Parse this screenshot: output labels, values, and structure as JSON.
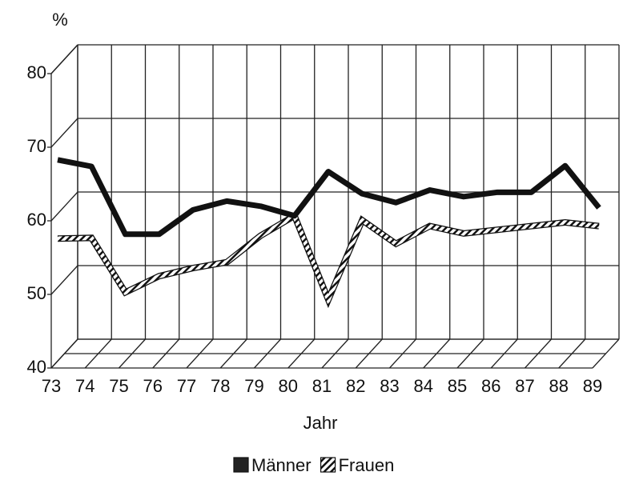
{
  "chart_data": {
    "type": "line",
    "ylabel": "%",
    "xlabel": "Jahr",
    "categories": [
      "73",
      "74",
      "75",
      "76",
      "77",
      "78",
      "79",
      "80",
      "81",
      "82",
      "83",
      "84",
      "85",
      "86",
      "87",
      "88",
      "89"
    ],
    "series": [
      {
        "name": "Männer",
        "color": "#111111",
        "values": [
          67.3,
          66.4,
          57.2,
          57.2,
          60.5,
          61.7,
          61,
          59.7,
          65.7,
          62.7,
          61.5,
          63.2,
          62.3,
          62.9,
          62.9,
          66.5,
          60.8
        ]
      },
      {
        "name": "Frauen",
        "color": "#ffffff",
        "values": [
          56.6,
          56.7,
          49.3,
          51.5,
          52.6,
          53.4,
          57,
          59.7,
          48.3,
          59.1,
          55.9,
          58.3,
          57.3,
          57.8,
          58.3,
          58.8,
          58.3
        ]
      }
    ],
    "ylim": [
      40,
      80
    ],
    "yticks": [
      40,
      50,
      60,
      70,
      80
    ],
    "grid": true
  }
}
